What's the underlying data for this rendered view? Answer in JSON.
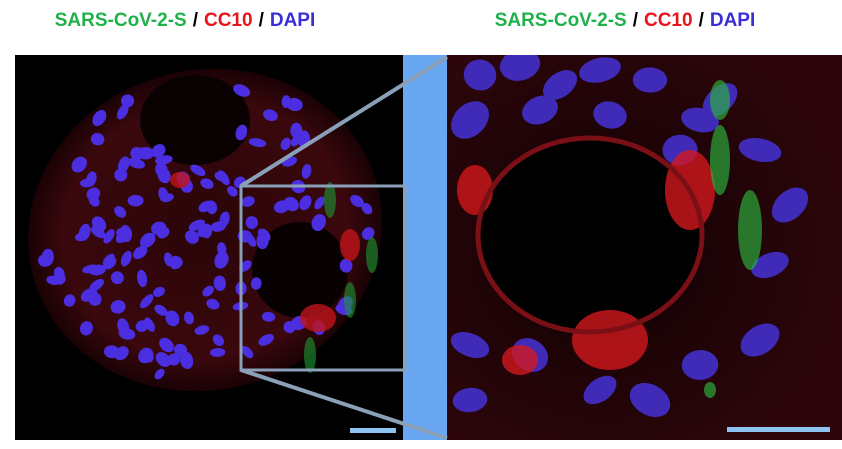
{
  "panels": [
    {
      "title": [
        {
          "text": "SARS-CoV-2-S",
          "color": "#1fb24a"
        },
        {
          "text": "/",
          "color": "#000000"
        },
        {
          "text": "CC10",
          "color": "#e8141c"
        },
        {
          "text": "/",
          "color": "#000000"
        },
        {
          "text": "DAPI",
          "color": "#3a2fd6"
        }
      ]
    },
    {
      "title": [
        {
          "text": "SARS-CoV-2-S",
          "color": "#1fb24a"
        },
        {
          "text": "/",
          "color": "#000000"
        },
        {
          "text": "CC10",
          "color": "#e8141c"
        },
        {
          "text": "/",
          "color": "#000000"
        },
        {
          "text": "DAPI",
          "color": "#3a2fd6"
        }
      ]
    }
  ]
}
